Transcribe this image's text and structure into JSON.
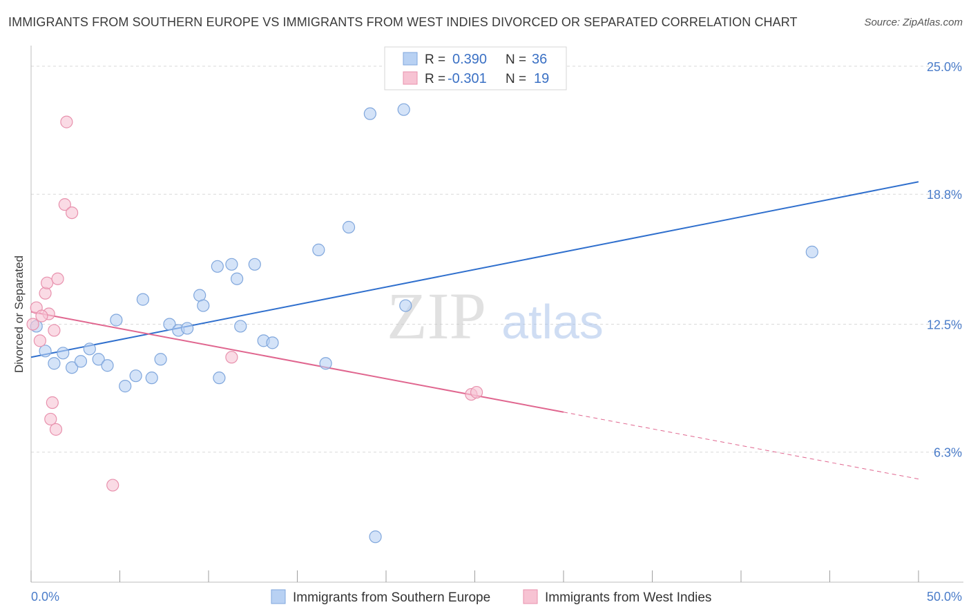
{
  "title": "IMMIGRANTS FROM SOUTHERN EUROPE VS IMMIGRANTS FROM WEST INDIES DIVORCED OR SEPARATED CORRELATION CHART",
  "source": "Source: ZipAtlas.com",
  "watermark": {
    "zip": "ZIP",
    "atlas": "atlas"
  },
  "colors": {
    "blue_fill": "#b8d1f3",
    "blue_stroke": "#7fa6dc",
    "blue_line": "#2f6fcd",
    "pink_fill": "#f7c3d3",
    "pink_stroke": "#e891ad",
    "pink_line": "#e0668f",
    "grid": "#d9d9d9",
    "axis_text": "#4a7cc9"
  },
  "legend": {
    "blue": {
      "r_label": "R =",
      "r_value": "0.390",
      "n_label": "N =",
      "n_value": "36"
    },
    "pink": {
      "r_label": "R =",
      "r_value": "-0.301",
      "n_label": "N =",
      "n_value": "19"
    }
  },
  "chart_data": {
    "type": "scatter",
    "title": "IMMIGRANTS FROM SOUTHERN EUROPE VS IMMIGRANTS FROM WEST INDIES DIVORCED OR SEPARATED CORRELATION CHART",
    "xlabel": "",
    "ylabel": "Divorced or Separated",
    "xlim": [
      0,
      50
    ],
    "ylim": [
      0,
      25.6
    ],
    "x_tick_labels": {
      "left": "0.0%",
      "right": "50.0%"
    },
    "y_ticks": [
      {
        "value": 6.3,
        "label": "6.3%"
      },
      {
        "value": 12.5,
        "label": "12.5%"
      },
      {
        "value": 18.8,
        "label": "18.8%"
      },
      {
        "value": 25.0,
        "label": "25.0%"
      }
    ],
    "series": [
      {
        "name": "Immigrants from Southern Europe",
        "color": "blue",
        "points": [
          [
            0.3,
            12.4
          ],
          [
            0.8,
            11.2
          ],
          [
            1.3,
            10.6
          ],
          [
            1.8,
            11.1
          ],
          [
            2.3,
            10.4
          ],
          [
            2.8,
            10.7
          ],
          [
            3.3,
            11.3
          ],
          [
            3.8,
            10.8
          ],
          [
            4.3,
            10.5
          ],
          [
            4.8,
            12.7
          ],
          [
            5.3,
            9.5
          ],
          [
            5.9,
            10.0
          ],
          [
            6.3,
            13.7
          ],
          [
            6.8,
            9.9
          ],
          [
            7.3,
            10.8
          ],
          [
            7.8,
            12.5
          ],
          [
            8.3,
            12.2
          ],
          [
            8.8,
            12.3
          ],
          [
            9.5,
            13.9
          ],
          [
            9.7,
            13.4
          ],
          [
            10.5,
            15.3
          ],
          [
            10.6,
            9.9
          ],
          [
            11.3,
            15.4
          ],
          [
            11.8,
            12.4
          ],
          [
            11.6,
            14.7
          ],
          [
            12.6,
            15.4
          ],
          [
            13.1,
            11.7
          ],
          [
            13.6,
            11.6
          ],
          [
            16.2,
            16.1
          ],
          [
            16.6,
            10.6
          ],
          [
            17.9,
            17.2
          ],
          [
            19.1,
            22.7
          ],
          [
            21.0,
            22.9
          ],
          [
            21.1,
            13.4
          ],
          [
            44.0,
            16.0
          ],
          [
            19.4,
            2.2
          ]
        ],
        "trend": {
          "x1": 0,
          "y1": 10.9,
          "x2": 50,
          "y2": 19.4,
          "dashed_from": null
        }
      },
      {
        "name": "Immigrants from West Indies",
        "color": "pink",
        "points": [
          [
            0.1,
            12.5
          ],
          [
            0.3,
            13.3
          ],
          [
            0.5,
            11.7
          ],
          [
            0.8,
            14.0
          ],
          [
            0.9,
            14.5
          ],
          [
            1.0,
            13.0
          ],
          [
            1.1,
            7.9
          ],
          [
            1.2,
            8.7
          ],
          [
            1.3,
            12.2
          ],
          [
            1.4,
            7.4
          ],
          [
            1.5,
            14.7
          ],
          [
            1.9,
            18.3
          ],
          [
            2.0,
            22.3
          ],
          [
            2.3,
            17.9
          ],
          [
            4.6,
            4.7
          ],
          [
            11.3,
            10.9
          ],
          [
            24.8,
            9.1
          ],
          [
            25.1,
            9.2
          ],
          [
            0.6,
            12.9
          ]
        ],
        "trend": {
          "x1": 0,
          "y1": 13.1,
          "x2": 50,
          "y2": 5.0,
          "dashed_from": 30
        }
      }
    ]
  },
  "bottom_legend": {
    "blue_label": "Immigrants from Southern Europe",
    "pink_label": "Immigrants from West Indies"
  }
}
